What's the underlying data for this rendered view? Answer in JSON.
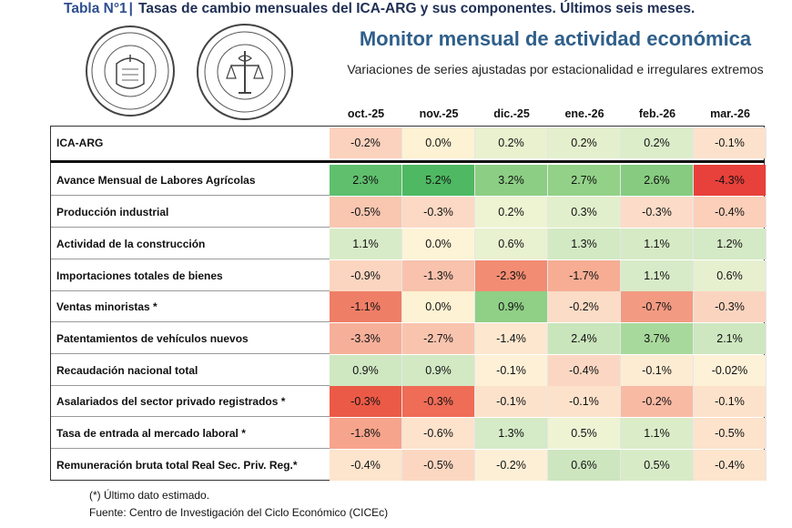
{
  "header": {
    "tabla_number": "Tabla N°1",
    "tabla_title": "Tasas de cambio mensuales del ICA-ARG y sus componentes. Últimos seis meses."
  },
  "logos": {
    "seal_santa_fe": "BOLSA DE COMERCIO DE SANTA FE",
    "seal_rosario": "BOLSA DE COMERCIO DE ROSARIO"
  },
  "monitor": {
    "title": "Monitor mensual de actividad económica",
    "subtitle": "Variaciones de series ajustadas por estacionalidad e irregulares extremos"
  },
  "table": {
    "columns": [
      "oct.-25",
      "nov.-25",
      "dic.-25",
      "ene.-26",
      "feb.-26",
      "mar.-26"
    ],
    "rows": [
      {
        "label": "ICA-ARG",
        "values": [
          "-0.2%",
          "0.0%",
          "0.2%",
          "0.2%",
          "0.2%",
          "-0.1%"
        ],
        "colors": [
          "#fbd2bd",
          "#fdf2d3",
          "#e9f1cf",
          "#e4f0cd",
          "#dcedca",
          "#fce2cc"
        ]
      },
      {
        "label": "Avance Mensual de Labores Agrícolas",
        "values": [
          "2.3%",
          "5.2%",
          "3.2%",
          "2.7%",
          "2.6%",
          "-4.3%"
        ],
        "colors": [
          "#5fbf6d",
          "#4eb862",
          "#8cce84",
          "#92d187",
          "#86cb80",
          "#e8403a"
        ]
      },
      {
        "label": "Producción industrial",
        "values": [
          "-0.5%",
          "-0.3%",
          "0.2%",
          "0.3%",
          "-0.3%",
          "-0.4%"
        ],
        "colors": [
          "#f9c6b0",
          "#fcd9c4",
          "#eef3d2",
          "#e2efcc",
          "#fcdcc8",
          "#fbcfb9"
        ]
      },
      {
        "label": "Actividad de la construcción",
        "values": [
          "1.1%",
          "0.0%",
          "0.6%",
          "1.3%",
          "1.1%",
          "1.2%"
        ],
        "colors": [
          "#d8ebc8",
          "#fdf3d6",
          "#e8f1d0",
          "#d2e9c4",
          "#d6eac6",
          "#d4e9c5"
        ]
      },
      {
        "label": "Importaciones totales de bienes",
        "values": [
          "-0.9%",
          "-1.3%",
          "-2.3%",
          "-1.7%",
          "1.1%",
          "0.6%"
        ],
        "colors": [
          "#fbd5c0",
          "#f8c2ac",
          "#f28c72",
          "#f6ad94",
          "#d8ebc8",
          "#e6f0cf"
        ]
      },
      {
        "label": "Ventas minoristas *",
        "values": [
          "-1.1%",
          "0.0%",
          "0.9%",
          "-0.2%",
          "-0.7%",
          "-0.3%"
        ],
        "colors": [
          "#ef7e67",
          "#fdf2d3",
          "#8fcf86",
          "#fbdcc6",
          "#f39a82",
          "#fbd4bf"
        ]
      },
      {
        "label": "Patentamientos de vehículos nuevos",
        "values": [
          "-3.3%",
          "-2.7%",
          "-1.4%",
          "2.4%",
          "3.7%",
          "2.1%"
        ],
        "colors": [
          "#f6b09a",
          "#f9c4ae",
          "#fde7cf",
          "#c9e5bc",
          "#a8d99c",
          "#cee7c0"
        ]
      },
      {
        "label": "Recaudación nacional total",
        "values": [
          "0.9%",
          "0.9%",
          "-0.1%",
          "-0.4%",
          "-0.1%",
          "-0.02%"
        ],
        "colors": [
          "#cfe8c2",
          "#d2e9c4",
          "#fdf0d6",
          "#fbd7c3",
          "#fdebd2",
          "#fdf1d8"
        ]
      },
      {
        "label": "Asalariados del sector privado registrados *",
        "values": [
          "-0.3%",
          "-0.3%",
          "-0.1%",
          "-0.1%",
          "-0.2%",
          "-0.1%"
        ],
        "colors": [
          "#eb5a46",
          "#ef6c57",
          "#fde2cb",
          "#fde2cb",
          "#f8baa3",
          "#fde2cb"
        ]
      },
      {
        "label": "Tasa de entrada al mercado laboral *",
        "values": [
          "-1.8%",
          "-0.6%",
          "1.3%",
          "0.5%",
          "1.1%",
          "-0.5%"
        ],
        "colors": [
          "#f6a48c",
          "#fde2cc",
          "#d5eac6",
          "#eef3d4",
          "#dbecc9",
          "#fde2cc"
        ]
      },
      {
        "label": "Remuneración bruta total Real Sec. Priv. Reg.*",
        "values": [
          "-0.4%",
          "-0.5%",
          "-0.2%",
          "0.6%",
          "0.5%",
          "-0.4%"
        ],
        "colors": [
          "#fde4cd",
          "#fbd7c1",
          "#fdefd6",
          "#cde6bf",
          "#d8ebc7",
          "#fde4cd"
        ]
      }
    ]
  },
  "footer": {
    "note": "(*) Último dato estimado.",
    "source": "Fuente: Centro de Investigación del Ciclo Económico (CICEc)"
  }
}
